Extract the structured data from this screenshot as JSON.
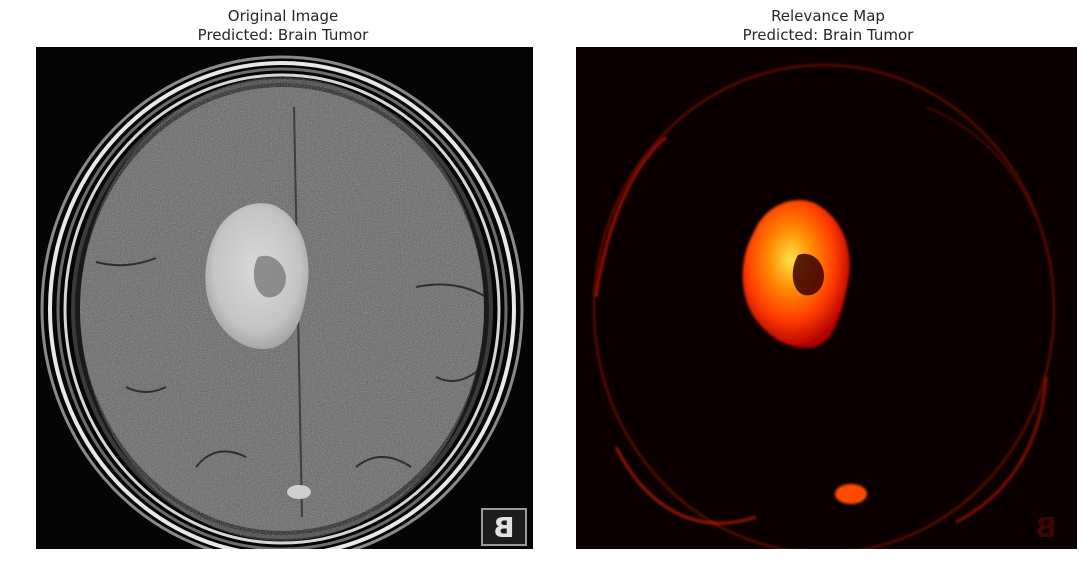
{
  "panels": [
    {
      "title_line1": "Original Image",
      "title_line2": "Predicted: Brain Tumor",
      "image_content": "axial brain MRI slice with bright tumor region",
      "corner_marker": "B"
    },
    {
      "title_line1": "Relevance Map",
      "title_line2": "Predicted: Brain Tumor",
      "image_content": "hot colormap relevance heatmap highlighting tumor region",
      "corner_marker": "B"
    }
  ],
  "colors": {
    "background": "#ffffff",
    "title_text": "#262626",
    "mri_dark": "#050505",
    "heatmap_dark": "#0a0000",
    "heatmap_hot": "#ff5a00"
  }
}
